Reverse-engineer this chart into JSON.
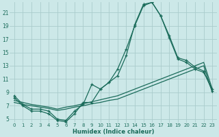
{
  "title": "",
  "xlabel": "Humidex (Indice chaleur)",
  "bg_color": "#cce8e8",
  "grid_color": "#aacccc",
  "line_color": "#1a6b5a",
  "xlim": [
    -0.5,
    23.5
  ],
  "ylim": [
    4.5,
    22.5
  ],
  "xticks": [
    0,
    1,
    2,
    3,
    4,
    5,
    6,
    7,
    8,
    9,
    10,
    11,
    12,
    13,
    14,
    15,
    16,
    17,
    18,
    19,
    20,
    21,
    22,
    23
  ],
  "yticks": [
    5,
    7,
    9,
    11,
    13,
    15,
    17,
    19,
    21
  ],
  "line1_x": [
    0,
    1,
    2,
    3,
    4,
    5,
    6,
    7,
    8,
    9,
    10,
    11,
    12,
    13,
    14,
    15,
    16,
    17,
    18,
    19,
    20,
    21,
    22,
    23
  ],
  "line1_y": [
    8.5,
    7.2,
    6.5,
    6.5,
    6.2,
    5.0,
    4.8,
    6.2,
    7.2,
    10.2,
    9.5,
    10.5,
    12.5,
    15.5,
    19.0,
    22.0,
    22.5,
    20.5,
    17.2,
    14.0,
    13.5,
    12.5,
    12.0,
    9.5
  ],
  "line2_x": [
    0,
    1,
    2,
    3,
    4,
    5,
    6,
    7,
    8,
    9,
    10,
    11,
    12,
    13,
    14,
    15,
    16,
    17,
    18,
    19,
    20,
    21,
    22,
    23
  ],
  "line2_y": [
    8.2,
    7.0,
    6.2,
    6.2,
    5.8,
    4.8,
    4.6,
    5.8,
    7.5,
    7.5,
    9.5,
    10.5,
    11.5,
    14.5,
    19.2,
    22.2,
    22.5,
    20.5,
    17.5,
    14.2,
    13.8,
    12.8,
    12.2,
    9.2
  ],
  "line3_x": [
    0,
    1,
    2,
    3,
    4,
    5,
    6,
    7,
    8,
    9,
    10,
    11,
    12,
    13,
    14,
    15,
    16,
    17,
    18,
    19,
    20,
    21,
    22,
    23
  ],
  "line3_y": [
    7.5,
    7.2,
    7.0,
    6.8,
    6.6,
    6.3,
    6.5,
    6.8,
    7.0,
    7.3,
    7.5,
    7.8,
    8.0,
    8.5,
    9.0,
    9.5,
    10.0,
    10.5,
    11.0,
    11.5,
    12.0,
    12.5,
    13.0,
    9.0
  ],
  "line4_x": [
    0,
    1,
    2,
    3,
    4,
    5,
    6,
    7,
    8,
    9,
    10,
    11,
    12,
    13,
    14,
    15,
    16,
    17,
    18,
    19,
    20,
    21,
    22,
    23
  ],
  "line4_y": [
    7.8,
    7.5,
    7.2,
    7.0,
    6.8,
    6.5,
    6.8,
    7.0,
    7.3,
    7.6,
    7.9,
    8.2,
    8.5,
    9.0,
    9.5,
    10.0,
    10.5,
    11.0,
    11.5,
    12.0,
    12.5,
    13.0,
    13.5,
    9.5
  ]
}
